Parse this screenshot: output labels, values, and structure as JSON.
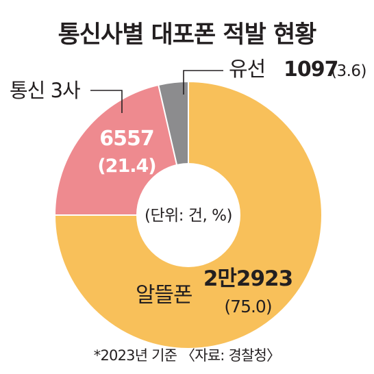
{
  "title": "통신사별 대포폰 적발 현황",
  "footnote": "*2023년 기준 〈자료: 경찰청〉",
  "chart_data": {
    "type": "pie",
    "variant": "donut",
    "title": "통신사별 대포폰 적발 현황",
    "center_label": "(단위: 건, %)",
    "slices": [
      {
        "name": "알뜰폰",
        "value_label": "2만2923",
        "percent_label": "(75.0)",
        "value": 22923,
        "percent": 75.0,
        "color": "#f8c05a"
      },
      {
        "name": "통신 3사",
        "value_label": "6557",
        "percent_label": "(21.4)",
        "value": 6557,
        "percent": 21.4,
        "color": "#ee8a8f"
      },
      {
        "name": "유선",
        "value_label": "1097",
        "percent_label": "(3.6)",
        "value": 1097,
        "percent": 3.6,
        "color": "#8c8c8e"
      }
    ]
  }
}
